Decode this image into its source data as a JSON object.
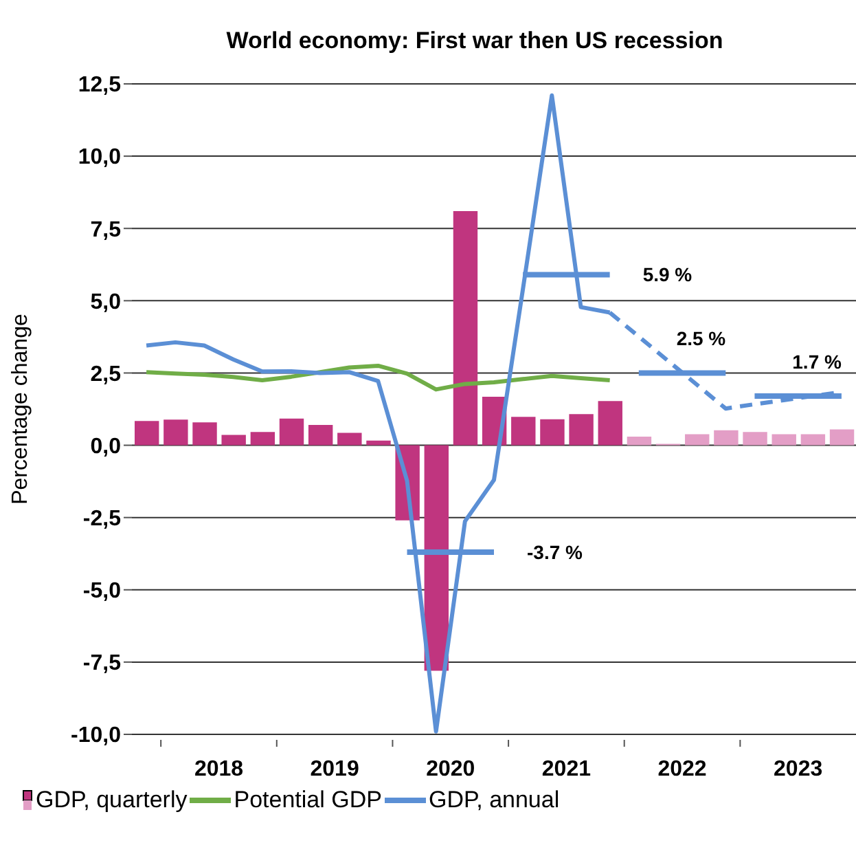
{
  "chart_data": {
    "type": "bar",
    "title": "World economy: First war then US recession",
    "ylabel": "Percentage change",
    "x": [
      2017.875,
      2018.125,
      2018.375,
      2018.625,
      2018.875,
      2019.125,
      2019.375,
      2019.625,
      2019.875,
      2020.125,
      2020.375,
      2020.625,
      2020.875,
      2021.125,
      2021.375,
      2021.625,
      2021.875,
      2022.125,
      2022.375,
      2022.625,
      2022.875,
      2023.125,
      2023.375,
      2023.625,
      2023.875
    ],
    "xlim": [
      2017.75,
      2024
    ],
    "xticks": [
      {
        "value": 2018,
        "label": null
      },
      {
        "value": 2018.5,
        "label": "2018"
      },
      {
        "value": 2019,
        "label": null
      },
      {
        "value": 2019.5,
        "label": "2019"
      },
      {
        "value": 2020,
        "label": null
      },
      {
        "value": 2020.5,
        "label": "2020"
      },
      {
        "value": 2021,
        "label": null
      },
      {
        "value": 2021.5,
        "label": "2021"
      },
      {
        "value": 2022,
        "label": null
      },
      {
        "value": 2022.5,
        "label": "2022"
      },
      {
        "value": 2023,
        "label": null
      },
      {
        "value": 2023.5,
        "label": "2023"
      }
    ],
    "series": [
      {
        "name": "GDP, quarterly",
        "colors": [
          "#c0357f",
          "#c0357f",
          "#c0357f",
          "#c0357f",
          "#c0357f",
          "#c0357f",
          "#c0357f",
          "#c0357f",
          "#c0357f",
          "#c0357f",
          "#c0357f",
          "#c0357f",
          "#c0357f",
          "#c0357f",
          "#c0357f",
          "#c0357f",
          "#c0357f",
          "#e39ec6",
          "#e39ec6",
          "#e39ec6",
          "#e39ec6",
          "#e39ec6",
          "#e39ec6",
          "#e39ec6",
          "#e39ec6"
        ],
        "values": [
          0.84,
          0.89,
          0.79,
          0.36,
          0.46,
          0.92,
          0.7,
          0.43,
          0.16,
          -2.6,
          -7.8,
          8.1,
          1.68,
          0.98,
          0.9,
          1.08,
          1.53,
          0.3,
          0.05,
          0.38,
          0.52,
          0.46,
          0.38,
          0.38,
          0.55
        ]
      },
      {
        "name": "Potential GDP",
        "type": "line",
        "color": "#70ad47",
        "line_style": "solid",
        "values": [
          2.53,
          2.48,
          2.44,
          2.36,
          2.25,
          2.37,
          2.53,
          2.69,
          2.75,
          2.48,
          1.93,
          2.12,
          2.18,
          2.29,
          2.4,
          2.32,
          2.25,
          null,
          null,
          null,
          null,
          null,
          null,
          null,
          null
        ]
      },
      {
        "name": "GDP, annual",
        "type": "line",
        "color": "#5b8fd5",
        "line_style": "solid",
        "values": [
          3.45,
          3.56,
          3.45,
          2.97,
          2.55,
          2.56,
          2.5,
          2.53,
          2.22,
          -1.23,
          -9.9,
          -2.63,
          -1.2,
          5.4,
          12.1,
          4.78,
          4.59,
          null,
          null,
          null,
          null,
          null,
          null,
          null,
          null
        ]
      },
      {
        "type": "line",
        "color": "#5b8fd5",
        "line_style": "dashed",
        "values": [
          null,
          null,
          null,
          null,
          null,
          null,
          null,
          null,
          null,
          null,
          null,
          null,
          null,
          null,
          null,
          null,
          4.59,
          3.76,
          2.93,
          2.1,
          1.27,
          1.42,
          1.56,
          1.7,
          1.84
        ]
      },
      {
        "type": "line",
        "color": "#5b8fd5",
        "line_style": "solid",
        "values": [
          null,
          null,
          null,
          null,
          null,
          null,
          null,
          null,
          null,
          -3.7,
          -3.7,
          -3.7,
          -3.7,
          null,
          null,
          null,
          null,
          null,
          null,
          null,
          null,
          null,
          null,
          null,
          null
        ],
        "value_labels": [
          null,
          null,
          null,
          null,
          null,
          null,
          null,
          null,
          null,
          null,
          null,
          null,
          "-3.7 %",
          null,
          null,
          null,
          null,
          null,
          null,
          null,
          null,
          null,
          null,
          null,
          null
        ]
      },
      {
        "type": "line",
        "color": "#5b8fd5",
        "line_style": "solid",
        "values": [
          null,
          null,
          null,
          null,
          null,
          null,
          null,
          null,
          null,
          null,
          null,
          null,
          null,
          5.9,
          5.9,
          5.9,
          5.9,
          null,
          null,
          null,
          null,
          null,
          null,
          null,
          null
        ],
        "value_labels": [
          null,
          null,
          null,
          null,
          null,
          null,
          null,
          null,
          null,
          null,
          null,
          null,
          null,
          null,
          null,
          null,
          "5.9 %",
          null,
          null,
          null,
          null,
          null,
          null,
          null,
          null
        ]
      },
      {
        "type": "line",
        "color": "#5b8fd5",
        "line_style": "solid",
        "values": [
          null,
          null,
          null,
          null,
          null,
          null,
          null,
          null,
          null,
          null,
          null,
          null,
          null,
          null,
          null,
          null,
          null,
          2.5,
          2.5,
          2.5,
          2.5,
          null,
          null,
          null,
          null
        ],
        "value_labels": [
          null,
          null,
          null,
          null,
          null,
          null,
          null,
          null,
          null,
          null,
          null,
          null,
          null,
          null,
          null,
          null,
          null,
          null,
          null,
          null,
          "2.5 %",
          null,
          null,
          null,
          null
        ]
      },
      {
        "type": "line",
        "color": "#5b8fd5",
        "line_style": "solid",
        "values": [
          null,
          null,
          null,
          null,
          null,
          null,
          null,
          null,
          null,
          null,
          null,
          null,
          null,
          null,
          null,
          null,
          null,
          null,
          null,
          null,
          null,
          1.7,
          1.7,
          1.7,
          1.7
        ],
        "value_labels": [
          null,
          null,
          null,
          null,
          null,
          null,
          null,
          null,
          null,
          null,
          null,
          null,
          null,
          null,
          null,
          null,
          null,
          null,
          null,
          null,
          null,
          null,
          null,
          null,
          "1.7 %"
        ]
      }
    ],
    "ylim": [
      -10,
      12.5
    ],
    "yticks": [
      {
        "value": -10,
        "label": "-10,0"
      },
      {
        "value": -7.5,
        "label": "-7,5"
      },
      {
        "value": -5,
        "label": "-5,0"
      },
      {
        "value": -2.5,
        "label": "-2,5"
      },
      {
        "value": 0,
        "label": "0,0"
      },
      {
        "value": 2.5,
        "label": "2,5"
      },
      {
        "value": 5,
        "label": "5,0"
      },
      {
        "value": 7.5,
        "label": "7,5"
      },
      {
        "value": 10,
        "label": "10,0"
      },
      {
        "value": 12.5,
        "label": "12,5"
      }
    ],
    "grid": "y",
    "legend": "bottom",
    "marker": "none"
  }
}
